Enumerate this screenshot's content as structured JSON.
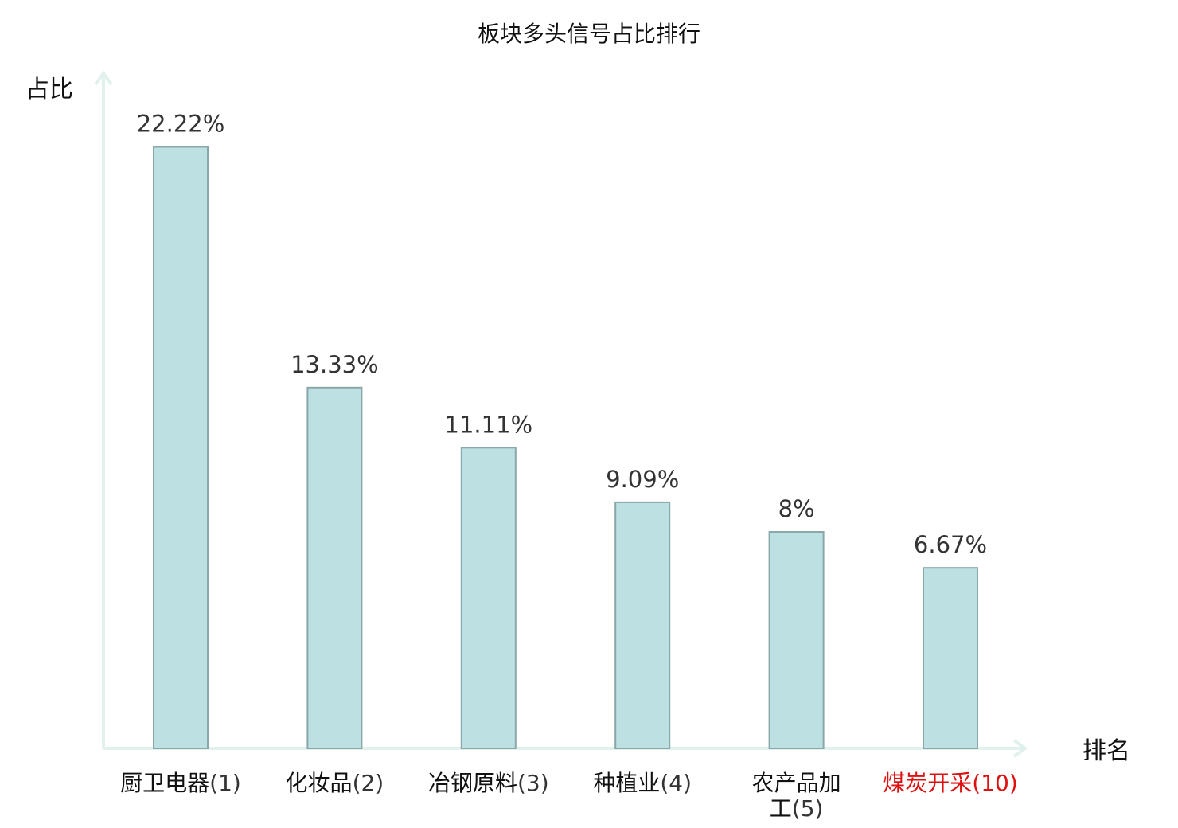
{
  "chart_data": {
    "type": "bar",
    "title": "板块多头信号占比排行",
    "ylabel": "占比",
    "xlabel": "排名",
    "ylim": [
      0,
      25
    ],
    "grid": false,
    "categories": [
      {
        "name": "厨卫电器",
        "rank": "(1)",
        "highlight": false
      },
      {
        "name": "化妆品",
        "rank": "(2)",
        "highlight": false
      },
      {
        "name": "冶钢原料",
        "rank": "(3)",
        "highlight": false
      },
      {
        "name": "种植业",
        "rank": "(4)",
        "highlight": false
      },
      {
        "name": "农产品加工",
        "rank": "(5)",
        "highlight": false
      },
      {
        "name": "煤炭开采",
        "rank": "(10)",
        "highlight": true
      }
    ],
    "values": [
      22.22,
      13.33,
      11.11,
      9.09,
      8,
      6.67
    ],
    "value_labels": [
      "22.22%",
      "13.33%",
      "11.11%",
      "9.09%",
      "8%",
      "6.67%"
    ],
    "colors": {
      "bar_fill": "#bde0e3",
      "bar_stroke": "#8aa7a9",
      "axis": "#e0f1ee",
      "highlight_text": "#e01010"
    }
  }
}
